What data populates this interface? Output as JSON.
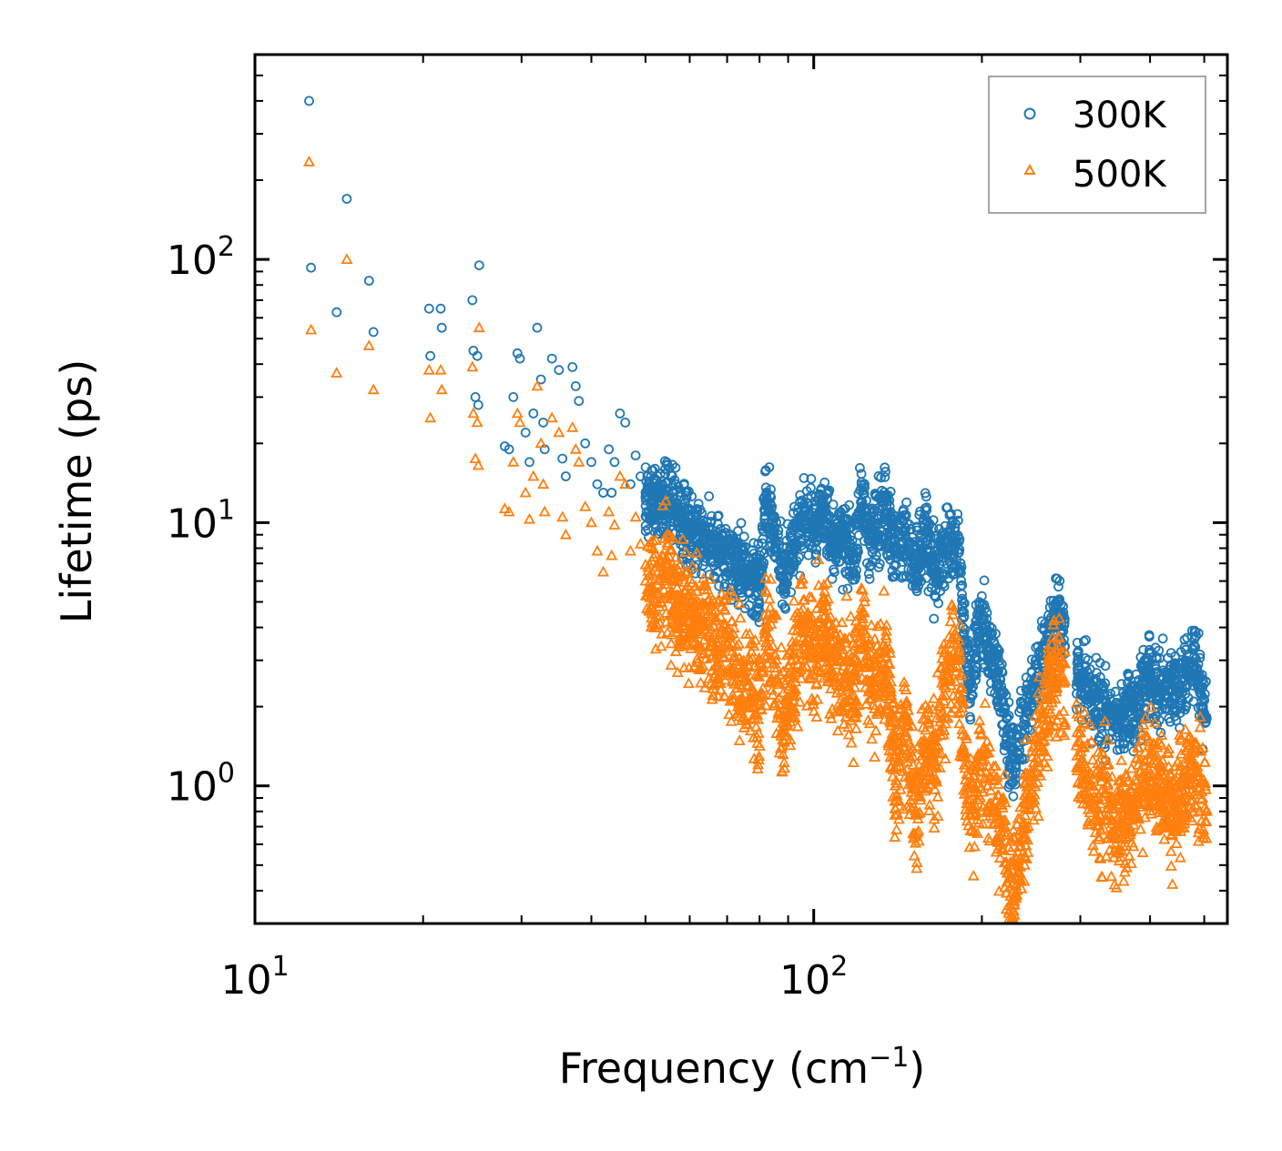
{
  "chart_data": {
    "type": "scatter",
    "xscale": "log",
    "yscale": "log",
    "xlabel": "Frequency (cm",
    "xlabel_sup": "−1",
    "xlabel_close": ")",
    "ylabel": "Lifetime (ps)",
    "xlim": [
      10,
      550
    ],
    "ylim": [
      0.3,
      600
    ],
    "x_ticks": [
      {
        "base": "10",
        "exp": "1",
        "value": 10
      },
      {
        "base": "10",
        "exp": "2",
        "value": 100
      }
    ],
    "y_ticks": [
      {
        "base": "10",
        "exp": "0",
        "value": 1
      },
      {
        "base": "10",
        "exp": "1",
        "value": 10
      },
      {
        "base": "10",
        "exp": "2",
        "value": 100
      }
    ],
    "legend_position": "top-right",
    "series": [
      {
        "name": "300K",
        "marker": "circle",
        "color": "#1f77b4",
        "points": [
          [
            12.5,
            400
          ],
          [
            12.6,
            93
          ],
          [
            14.0,
            63
          ],
          [
            14.6,
            170
          ],
          [
            16.0,
            83
          ],
          [
            16.3,
            53
          ],
          [
            20.5,
            65
          ],
          [
            21.5,
            65
          ],
          [
            20.6,
            43
          ],
          [
            21.6,
            55
          ],
          [
            24.5,
            70
          ],
          [
            25.2,
            95
          ],
          [
            24.6,
            45
          ],
          [
            25.0,
            43
          ],
          [
            24.8,
            30
          ],
          [
            25.1,
            28
          ],
          [
            28.0,
            19.5
          ],
          [
            28.5,
            19
          ],
          [
            29.5,
            44
          ],
          [
            29.8,
            42
          ],
          [
            29.0,
            30
          ],
          [
            30.5,
            22
          ],
          [
            31.5,
            26
          ],
          [
            31.0,
            17
          ],
          [
            32.0,
            55
          ],
          [
            32.5,
            35
          ],
          [
            32.8,
            24
          ],
          [
            33.0,
            19
          ],
          [
            34.0,
            42
          ],
          [
            35.0,
            38
          ],
          [
            35.5,
            17.5
          ],
          [
            36.0,
            15
          ],
          [
            37.0,
            39
          ],
          [
            37.5,
            33
          ],
          [
            38.0,
            29
          ],
          [
            39.0,
            20
          ],
          [
            40.0,
            17
          ],
          [
            41.0,
            14
          ],
          [
            42.0,
            13
          ],
          [
            43.0,
            19
          ],
          [
            43.5,
            13
          ],
          [
            44.0,
            17
          ],
          [
            45.0,
            26
          ],
          [
            46.0,
            24
          ],
          [
            47.0,
            14
          ],
          [
            48.0,
            18
          ],
          [
            49.0,
            15
          ],
          [
            50.0,
            12.5
          ],
          [
            52.0,
            11.5
          ],
          [
            54.0,
            13
          ],
          [
            56.0,
            11.5
          ],
          [
            58.0,
            10.2
          ],
          [
            60.0,
            9.8
          ],
          [
            62.0,
            9.3
          ],
          [
            65.0,
            8.6
          ],
          [
            68.0,
            7.6
          ],
          [
            72.0,
            7.5
          ],
          [
            76.0,
            6.2
          ],
          [
            80.0,
            6.0
          ],
          [
            82.0,
            11.8
          ],
          [
            85.0,
            9.1
          ],
          [
            88.0,
            6.3
          ],
          [
            92.0,
            7.8
          ],
          [
            96.0,
            11.5
          ],
          [
            100.0,
            9.3
          ],
          [
            104.0,
            11.3
          ],
          [
            108.0,
            8.3
          ],
          [
            112.0,
            9.2
          ],
          [
            118.0,
            7.4
          ],
          [
            122.0,
            12.0
          ],
          [
            126.0,
            8.6
          ],
          [
            130.0,
            9.8
          ],
          [
            135.0,
            10.8
          ],
          [
            140.0,
            7.6
          ],
          [
            146.0,
            9.0
          ],
          [
            152.0,
            6.7
          ],
          [
            158.0,
            9.3
          ],
          [
            165.0,
            6.2
          ],
          [
            172.0,
            7.7
          ],
          [
            178.0,
            8.3
          ],
          [
            182.0,
            7.9
          ],
          [
            186.0,
            3.5
          ],
          [
            192.0,
            2.2
          ],
          [
            198.0,
            4.9
          ],
          [
            205.0,
            3.3
          ],
          [
            212.0,
            2.7
          ],
          [
            218.0,
            2.1
          ],
          [
            224.0,
            1.4
          ],
          [
            230.0,
            1.2
          ],
          [
            238.0,
            1.8
          ],
          [
            245.0,
            2.2
          ],
          [
            252.0,
            2.8
          ],
          [
            258.0,
            3.3
          ],
          [
            264.0,
            3.8
          ],
          [
            270.0,
            4.3
          ],
          [
            275.0,
            4.5
          ],
          [
            300.0,
            2.5
          ],
          [
            310.0,
            2.3
          ],
          [
            320.0,
            2.1
          ],
          [
            335.0,
            1.9
          ],
          [
            350.0,
            1.8
          ],
          [
            365.0,
            1.9
          ],
          [
            380.0,
            2.0
          ],
          [
            395.0,
            2.7
          ],
          [
            410.0,
            2.4
          ],
          [
            430.0,
            2.3
          ],
          [
            445.0,
            2.2
          ],
          [
            465.0,
            2.7
          ],
          [
            480.0,
            3.1
          ],
          [
            495.0,
            2.2
          ],
          [
            505.0,
            1.8
          ]
        ]
      },
      {
        "name": "500K",
        "marker": "triangle",
        "color": "#ff7f0e",
        "points": [
          [
            12.5,
            235
          ],
          [
            12.6,
            54
          ],
          [
            14.0,
            37
          ],
          [
            14.6,
            100
          ],
          [
            16.0,
            47
          ],
          [
            16.3,
            32
          ],
          [
            20.5,
            38
          ],
          [
            21.5,
            38
          ],
          [
            20.6,
            25
          ],
          [
            21.6,
            32
          ],
          [
            24.5,
            39
          ],
          [
            25.2,
            55
          ],
          [
            24.6,
            26
          ],
          [
            25.0,
            24
          ],
          [
            24.8,
            17.5
          ],
          [
            25.1,
            16.5
          ],
          [
            28.0,
            11.3
          ],
          [
            28.5,
            11.0
          ],
          [
            29.5,
            26
          ],
          [
            29.8,
            24
          ],
          [
            29.0,
            17
          ],
          [
            30.5,
            13
          ],
          [
            31.5,
            15
          ],
          [
            31.0,
            10.3
          ],
          [
            32.0,
            33
          ],
          [
            32.5,
            20
          ],
          [
            32.8,
            14
          ],
          [
            33.0,
            11
          ],
          [
            34.0,
            25
          ],
          [
            35.0,
            22
          ],
          [
            35.5,
            10.5
          ],
          [
            36.0,
            9.0
          ],
          [
            37.0,
            23
          ],
          [
            37.5,
            19
          ],
          [
            38.0,
            17
          ],
          [
            39.0,
            11.5
          ],
          [
            40.0,
            10.0
          ],
          [
            41.0,
            7.8
          ],
          [
            42.0,
            6.5
          ],
          [
            43.0,
            11
          ],
          [
            43.5,
            7.5
          ],
          [
            44.0,
            9.8
          ],
          [
            45.0,
            15
          ],
          [
            46.0,
            14
          ],
          [
            47.0,
            7.8
          ],
          [
            48.0,
            10.5
          ],
          [
            49.0,
            8.3
          ],
          [
            50.0,
            6.0
          ],
          [
            52.0,
            5.5
          ],
          [
            54.0,
            6.3
          ],
          [
            56.0,
            5.3
          ],
          [
            58.0,
            4.8
          ],
          [
            60.0,
            4.5
          ],
          [
            62.0,
            4.3
          ],
          [
            65.0,
            3.7
          ],
          [
            68.0,
            3.3
          ],
          [
            72.0,
            3.0
          ],
          [
            76.0,
            2.4
          ],
          [
            80.0,
            2.1
          ],
          [
            82.0,
            4.0
          ],
          [
            85.0,
            2.8
          ],
          [
            88.0,
            1.5
          ],
          [
            92.0,
            2.6
          ],
          [
            96.0,
            4.2
          ],
          [
            100.0,
            3.1
          ],
          [
            104.0,
            4.0
          ],
          [
            108.0,
            2.7
          ],
          [
            112.0,
            3.0
          ],
          [
            118.0,
            2.2
          ],
          [
            122.0,
            4.4
          ],
          [
            126.0,
            2.3
          ],
          [
            130.0,
            2.6
          ],
          [
            135.0,
            3.1
          ],
          [
            140.0,
            1.0
          ],
          [
            146.0,
            1.8
          ],
          [
            152.0,
            0.78
          ],
          [
            158.0,
            1.4
          ],
          [
            165.0,
            1.2
          ],
          [
            172.0,
            2.5
          ],
          [
            178.0,
            3.2
          ],
          [
            182.0,
            3.0
          ],
          [
            186.0,
            1.2
          ],
          [
            192.0,
            0.68
          ],
          [
            198.0,
            1.3
          ],
          [
            205.0,
            1.0
          ],
          [
            212.0,
            0.82
          ],
          [
            218.0,
            0.65
          ],
          [
            224.0,
            0.45
          ],
          [
            230.0,
            0.42
          ],
          [
            238.0,
            0.72
          ],
          [
            245.0,
            1.1
          ],
          [
            252.0,
            1.4
          ],
          [
            258.0,
            1.8
          ],
          [
            264.0,
            2.2
          ],
          [
            270.0,
            2.6
          ],
          [
            275.0,
            2.8
          ],
          [
            300.0,
            1.2
          ],
          [
            310.0,
            1.0
          ],
          [
            320.0,
            0.9
          ],
          [
            335.0,
            0.82
          ],
          [
            350.0,
            0.7
          ],
          [
            365.0,
            0.78
          ],
          [
            380.0,
            0.95
          ],
          [
            395.0,
            1.1
          ],
          [
            410.0,
            1.0
          ],
          [
            430.0,
            0.9
          ],
          [
            445.0,
            0.8
          ],
          [
            465.0,
            1.1
          ],
          [
            480.0,
            1.2
          ],
          [
            495.0,
            0.95
          ],
          [
            505.0,
            0.8
          ]
        ]
      }
    ]
  }
}
